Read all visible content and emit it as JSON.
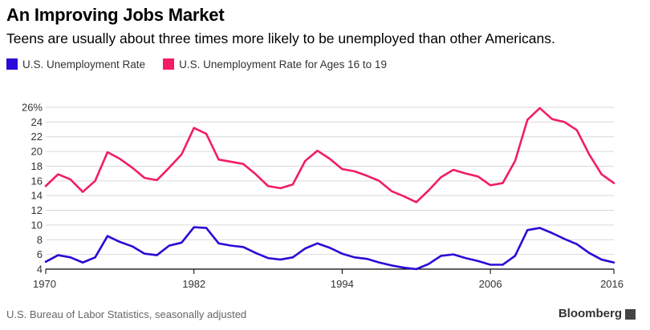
{
  "header": {
    "title": "An Improving Jobs Market",
    "subtitle": "Teens are usually about three times more likely to be unemployed than other Americans."
  },
  "footer": {
    "source": "U.S. Bureau of Labor Statistics, seasonally adjusted",
    "brand": "Bloomberg"
  },
  "colors": {
    "overall": "#2a0ad6",
    "teen": "#f21c67",
    "grid": "#d9d9d9",
    "axis": "#000000"
  },
  "chart_data": {
    "type": "line",
    "title": "An Improving Jobs Market",
    "subtitle": "Teens are usually about three times more likely to be unemployed than other Americans.",
    "xlabel": "",
    "ylabel": "",
    "xlim": [
      1970,
      2016
    ],
    "ylim": [
      4,
      26
    ],
    "x_ticks": [
      1970,
      1982,
      1994,
      2006,
      2016
    ],
    "y_ticks": [
      4,
      6,
      8,
      10,
      12,
      14,
      16,
      18,
      20,
      22,
      24,
      26
    ],
    "y_tick_labels": [
      "4",
      "6",
      "8",
      "10",
      "12",
      "14",
      "16",
      "18",
      "20",
      "22",
      "24",
      "26%"
    ],
    "grid": true,
    "legend": "top-left",
    "x": [
      1970,
      1971,
      1972,
      1973,
      1974,
      1975,
      1976,
      1977,
      1978,
      1979,
      1980,
      1981,
      1982,
      1983,
      1984,
      1985,
      1986,
      1987,
      1988,
      1989,
      1990,
      1991,
      1992,
      1993,
      1994,
      1995,
      1996,
      1997,
      1998,
      1999,
      2000,
      2001,
      2002,
      2003,
      2004,
      2005,
      2006,
      2007,
      2008,
      2009,
      2010,
      2011,
      2012,
      2013,
      2014,
      2015,
      2016
    ],
    "series": [
      {
        "name": "U.S. Unemployment Rate",
        "color": "#2a0ad6",
        "values": [
          5.0,
          5.9,
          5.6,
          4.9,
          5.6,
          8.5,
          7.7,
          7.1,
          6.1,
          5.9,
          7.2,
          7.6,
          9.7,
          9.6,
          7.5,
          7.2,
          7.0,
          6.2,
          5.5,
          5.3,
          5.6,
          6.8,
          7.5,
          6.9,
          6.1,
          5.6,
          5.4,
          4.9,
          4.5,
          4.2,
          4.0,
          4.7,
          5.8,
          6.0,
          5.5,
          5.1,
          4.6,
          4.6,
          5.8,
          9.3,
          9.6,
          8.9,
          8.1,
          7.4,
          6.2,
          5.3,
          4.9
        ]
      },
      {
        "name": "U.S. Unemployment Rate for Ages 16 to 19",
        "color": "#f21c67",
        "values": [
          15.3,
          16.9,
          16.2,
          14.5,
          16.0,
          19.9,
          19.0,
          17.8,
          16.4,
          16.1,
          17.8,
          19.6,
          23.2,
          22.4,
          18.9,
          18.6,
          18.3,
          16.9,
          15.3,
          15.0,
          15.5,
          18.7,
          20.1,
          19.0,
          17.6,
          17.3,
          16.7,
          16.0,
          14.6,
          13.9,
          13.1,
          14.7,
          16.5,
          17.5,
          17.0,
          16.6,
          15.4,
          15.7,
          18.7,
          24.3,
          25.9,
          24.4,
          24.0,
          22.9,
          19.6,
          16.9,
          15.7
        ]
      }
    ]
  }
}
